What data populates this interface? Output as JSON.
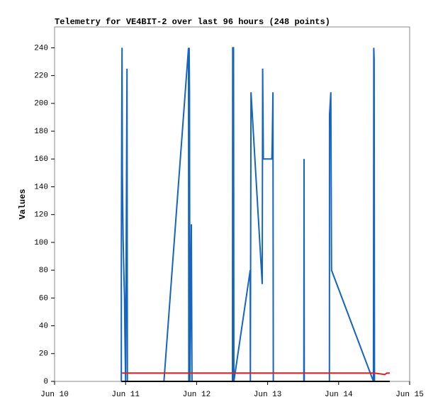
{
  "chart_data": {
    "type": "line",
    "title": "Telemetry for VE4BIT-2 over last 96 hours (248 points)",
    "y_label": "Values",
    "xlim": [
      10,
      15
    ],
    "xticks": [
      {
        "value": 10,
        "label": "Jun 10"
      },
      {
        "value": 11,
        "label": "Jun 11"
      },
      {
        "value": 12,
        "label": "Jun 12"
      },
      {
        "value": 13,
        "label": "Jun 13"
      },
      {
        "value": 14,
        "label": "Jun 14"
      },
      {
        "value": 15,
        "label": "Jun 15"
      }
    ],
    "ylim": [
      0,
      255
    ],
    "yticks": [
      0,
      20,
      40,
      60,
      80,
      100,
      120,
      140,
      160,
      180,
      200,
      220,
      240
    ],
    "grid": false,
    "series": [
      {
        "color": "#1565c0",
        "x": [
          10.94,
          10.94,
          10.945,
          10.95,
          10.955,
          10.96,
          10.965,
          10.975,
          10.985,
          10.99,
          11.0,
          11.02,
          11.025,
          11.54,
          11.886,
          11.89,
          11.895,
          11.9,
          11.905,
          11.926,
          11.935,
          12.505,
          12.508,
          12.52,
          12.525,
          12.755,
          12.757,
          12.766,
          12.924,
          12.93,
          12.94,
          13.06,
          13.065,
          13.075,
          13.08,
          13.51,
          13.513,
          13.516,
          13.87,
          13.872,
          13.89,
          13.9,
          14.49,
          14.495,
          14.5,
          14.505
        ],
        "values": [
          0,
          88,
          177,
          240,
          150,
          125,
          103,
          80,
          60,
          35,
          0,
          225,
          0,
          0,
          240,
          0,
          240,
          208,
          0,
          113,
          0,
          0,
          240,
          240,
          0,
          80,
          0,
          208,
          70,
          225,
          160,
          160,
          172,
          208,
          0,
          0,
          160,
          0,
          0,
          192,
          208,
          80,
          0,
          240,
          232,
          0
        ]
      },
      {
        "color": "#e02020",
        "x": [
          10.95,
          14.5,
          14.65,
          14.68,
          14.72
        ],
        "values": [
          6,
          6,
          5,
          6,
          6
        ]
      },
      {
        "color": "#000000",
        "x": [
          10.94,
          14.72
        ],
        "values": [
          0,
          0
        ]
      }
    ]
  }
}
